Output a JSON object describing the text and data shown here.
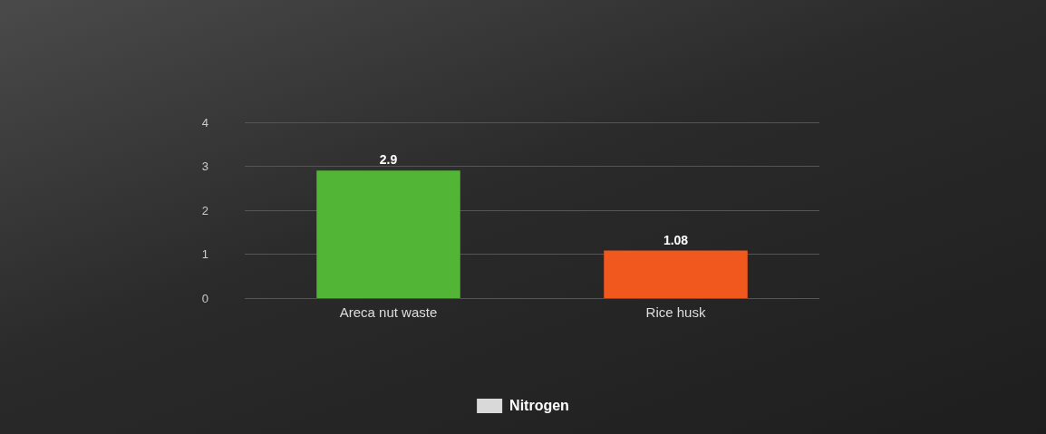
{
  "chart_data": {
    "type": "bar",
    "categories": [
      "Areca nut waste",
      "Rice husk"
    ],
    "series": [
      {
        "name": "Nitrogen",
        "color": "#d9d9d9",
        "colors": [
          "#52b535",
          "#f0581e"
        ],
        "values": [
          2.9,
          1.08
        ]
      }
    ],
    "ylim": [
      0,
      4
    ],
    "yticks": [
      0,
      1,
      2,
      3,
      4
    ],
    "grid": "y",
    "legend": "bottom",
    "data_labels": true
  }
}
